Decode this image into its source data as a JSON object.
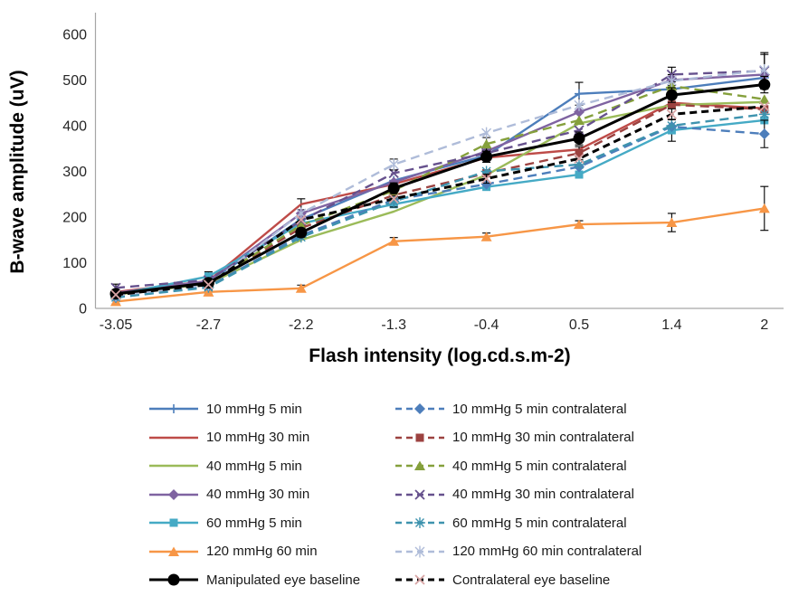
{
  "chart_data": {
    "type": "line",
    "title": "",
    "xlabel": "Flash intensity (log.cd.s.m-2)",
    "ylabel": "B-wave amplitude (uV)",
    "x_categories": [
      "-3.05",
      "-2.7",
      "-2.2",
      "-1.3",
      "-0.4",
      "0.5",
      "1.4",
      "2"
    ],
    "y_ticks": [
      0,
      100,
      200,
      300,
      400,
      500,
      600
    ],
    "ylim": [
      0,
      600
    ],
    "grid": false,
    "legend_position": "bottom",
    "axis_color": "#A6A6A6",
    "tick_label_color": "#262626",
    "error_bar_color": "#000000",
    "series": [
      {
        "name": "10 mmHg 5 min",
        "color": "#4D7EBB",
        "dash": false,
        "marker": "plus",
        "baseline": false,
        "values": [
          35,
          58,
          195,
          280,
          335,
          470,
          480,
          505
        ],
        "err": [
          6,
          0,
          0,
          0,
          0,
          25,
          0,
          0
        ]
      },
      {
        "name": "10 mmHg 30 min",
        "color": "#BE4B48",
        "dash": false,
        "marker": "none",
        "baseline": false,
        "values": [
          36,
          60,
          228,
          272,
          330,
          348,
          450,
          438
        ],
        "err": [
          0,
          0,
          12,
          0,
          0,
          0,
          0,
          0
        ]
      },
      {
        "name": "40 mmHg 5 min",
        "color": "#9BBB59",
        "dash": false,
        "marker": "none",
        "baseline": false,
        "values": [
          30,
          54,
          150,
          212,
          292,
          405,
          445,
          452
        ],
        "err": [
          0,
          0,
          0,
          0,
          0,
          0,
          0,
          0
        ]
      },
      {
        "name": "40 mmHg 30 min",
        "color": "#7F63A1",
        "dash": false,
        "marker": "diamond",
        "baseline": false,
        "values": [
          34,
          60,
          208,
          276,
          344,
          430,
          500,
          512
        ],
        "err": [
          0,
          0,
          0,
          0,
          0,
          0,
          12,
          0
        ]
      },
      {
        "name": "60 mmHg 5 min",
        "color": "#45AAC5",
        "dash": false,
        "marker": "square",
        "baseline": false,
        "values": [
          30,
          70,
          186,
          228,
          266,
          293,
          390,
          412
        ],
        "err": [
          0,
          10,
          0,
          0,
          0,
          0,
          24,
          0
        ]
      },
      {
        "name": "120 mmHg 60 min",
        "color": "#F79646",
        "dash": false,
        "marker": "triangle",
        "baseline": false,
        "values": [
          15,
          36,
          44,
          147,
          157,
          184,
          188,
          219
        ],
        "err": [
          5,
          5,
          7,
          8,
          8,
          8,
          20,
          48
        ]
      },
      {
        "name": "Manipulated eye baseline",
        "color": "#000000",
        "dash": false,
        "marker": "circle",
        "baseline": true,
        "values": [
          32,
          56,
          166,
          263,
          332,
          372,
          467,
          490
        ],
        "err": [
          8,
          8,
          10,
          12,
          12,
          14,
          16,
          18
        ]
      },
      {
        "name": "10 mmHg 5 min contralateral",
        "color": "#4D7EBB",
        "dash": true,
        "marker": "diamond",
        "baseline": false,
        "values": [
          24,
          48,
          160,
          238,
          272,
          310,
          398,
          382
        ],
        "err": [
          0,
          0,
          0,
          0,
          0,
          0,
          0,
          30
        ]
      },
      {
        "name": "10 mmHg 30 min contralateral",
        "color": "#9C4240",
        "dash": true,
        "marker": "square",
        "baseline": false,
        "values": [
          30,
          55,
          176,
          248,
          296,
          340,
          446,
          436
        ],
        "err": [
          0,
          0,
          0,
          0,
          0,
          14,
          0,
          0
        ]
      },
      {
        "name": "40 mmHg 5 min contralateral",
        "color": "#85A03C",
        "dash": true,
        "marker": "triangle",
        "baseline": false,
        "values": [
          30,
          56,
          182,
          258,
          360,
          412,
          487,
          458
        ],
        "err": [
          0,
          0,
          0,
          0,
          14,
          0,
          0,
          0
        ]
      },
      {
        "name": "40 mmHg 30 min contralateral",
        "color": "#66518D",
        "dash": true,
        "marker": "x",
        "baseline": false,
        "values": [
          45,
          62,
          192,
          296,
          340,
          390,
          512,
          520
        ],
        "err": [
          8,
          0,
          0,
          0,
          0,
          0,
          16,
          40
        ]
      },
      {
        "name": "60 mmHg 5 min contralateral",
        "color": "#3E93AE",
        "dash": true,
        "marker": "asterisk",
        "baseline": false,
        "values": [
          24,
          46,
          156,
          234,
          300,
          315,
          400,
          425
        ],
        "err": [
          0,
          0,
          0,
          12,
          0,
          0,
          0,
          0
        ]
      },
      {
        "name": "120 mmHg 60 min contralateral",
        "color": "#AFBCD9",
        "dash": true,
        "marker": "x-star",
        "baseline": false,
        "values": [
          28,
          52,
          208,
          315,
          384,
          445,
          498,
          522
        ],
        "err": [
          0,
          0,
          0,
          12,
          0,
          0,
          0,
          34
        ]
      },
      {
        "name": "Contralateral eye baseline",
        "color": "#000000",
        "dash": true,
        "marker": "x",
        "marker_color": "#D8A5A5",
        "baseline": true,
        "values": [
          30,
          52,
          194,
          240,
          284,
          328,
          425,
          442
        ],
        "err": [
          6,
          0,
          0,
          0,
          10,
          0,
          12,
          0
        ]
      }
    ]
  }
}
